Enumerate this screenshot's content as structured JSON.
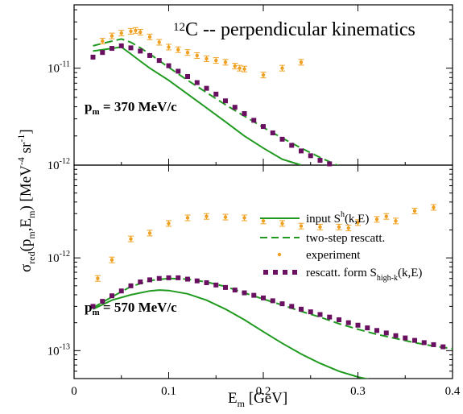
{
  "figure": {
    "title_sup": "12",
    "title_main": "C -- perpendicular kinematics",
    "ylabel": "σred(pm,Em) [MeV-4 sr-1]",
    "xlabel": "Em [GeV]",
    "colors": {
      "green": "#1f9a1f",
      "orange": "#f0a020",
      "purple": "#6a1060"
    }
  },
  "chart_data": [
    {
      "type": "line",
      "panel": "top",
      "annotation": "pm = 370 MeV/c",
      "xlim": [
        0,
        0.4
      ],
      "ylim": [
        1e-12,
        4.5e-11
      ],
      "yscale": "log",
      "y_tick_labels": [
        "10-12",
        "10-11"
      ],
      "grid": false,
      "series": [
        {
          "name": "input Sh(k,E)",
          "style": "solid",
          "x": [
            0.02,
            0.03,
            0.04,
            0.05,
            0.06,
            0.07,
            0.08,
            0.1,
            0.12,
            0.14,
            0.16,
            0.18,
            0.2,
            0.22,
            0.24
          ],
          "y": [
            1.5e-11,
            1.55e-11,
            1.6e-11,
            1.65e-11,
            1.4e-11,
            1.18e-11,
            1e-11,
            7.5e-12,
            5.4e-12,
            3.9e-12,
            2.8e-12,
            2e-12,
            1.5e-12,
            1.15e-12,
            1e-12
          ]
        },
        {
          "name": "two-step rescatt.",
          "style": "dashed",
          "x": [
            0.02,
            0.03,
            0.04,
            0.05,
            0.06,
            0.07,
            0.08,
            0.1,
            0.12,
            0.14,
            0.16,
            0.18,
            0.2,
            0.22,
            0.24,
            0.26,
            0.28
          ],
          "y": [
            1.7e-11,
            1.8e-11,
            1.9e-11,
            2e-11,
            1.85e-11,
            1.62e-11,
            1.4e-11,
            1.02e-11,
            7.5e-12,
            5.6e-12,
            4.2e-12,
            3.2e-12,
            2.45e-12,
            1.9e-12,
            1.5e-12,
            1.2e-12,
            9.8e-13
          ]
        },
        {
          "name": "rescatt. form Shigh-k(k,E)",
          "style": "squares",
          "x": [
            0.02,
            0.03,
            0.04,
            0.05,
            0.06,
            0.07,
            0.08,
            0.09,
            0.1,
            0.11,
            0.12,
            0.13,
            0.14,
            0.15,
            0.16,
            0.17,
            0.18,
            0.19,
            0.2,
            0.21,
            0.22,
            0.23,
            0.24,
            0.25,
            0.26,
            0.27,
            0.28
          ],
          "y": [
            1.3e-11,
            1.45e-11,
            1.6e-11,
            1.7e-11,
            1.62e-11,
            1.5e-11,
            1.35e-11,
            1.2e-11,
            1.06e-11,
            9.3e-12,
            8.2e-12,
            7.1e-12,
            6.2e-12,
            5.4e-12,
            4.6e-12,
            3.95e-12,
            3.4e-12,
            2.9e-12,
            2.5e-12,
            2.15e-12,
            1.85e-12,
            1.6e-12,
            1.4e-12,
            1.25e-12,
            1.12e-12,
            1.03e-12,
            9.6e-13
          ]
        },
        {
          "name": "experiment",
          "style": "errorbars",
          "x": [
            0.03,
            0.04,
            0.05,
            0.06,
            0.065,
            0.07,
            0.08,
            0.09,
            0.1,
            0.11,
            0.12,
            0.13,
            0.14,
            0.15,
            0.16,
            0.17,
            0.175,
            0.18,
            0.2,
            0.22,
            0.24
          ],
          "y": [
            1.9e-11,
            2.15e-11,
            2.3e-11,
            2.4e-11,
            2.45e-11,
            2.35e-11,
            2.1e-11,
            1.85e-11,
            1.65e-11,
            1.55e-11,
            1.45e-11,
            1.35e-11,
            1.25e-11,
            1.2e-11,
            1.15e-11,
            1.05e-11,
            1e-11,
            9.8e-12,
            8.5e-12,
            1e-11,
            1.15e-11
          ]
        }
      ]
    },
    {
      "type": "line",
      "panel": "bottom",
      "annotation": "pm = 570 MeV/c",
      "xlim": [
        0,
        0.4
      ],
      "ylim": [
        5e-14,
        1e-11
      ],
      "yscale": "log",
      "y_tick_labels": [
        "10-13",
        "10-12"
      ],
      "grid": false,
      "series": [
        {
          "name": "input Sh(k,E)",
          "style": "solid",
          "x": [
            0.02,
            0.04,
            0.06,
            0.08,
            0.09,
            0.1,
            0.12,
            0.14,
            0.16,
            0.18,
            0.2,
            0.22,
            0.24,
            0.26,
            0.28,
            0.3,
            0.32,
            0.34
          ],
          "y": [
            2.8e-13,
            3.5e-13,
            4e-13,
            4.4e-13,
            4.5e-13,
            4.45e-13,
            4.1e-13,
            3.5e-13,
            2.8e-13,
            2.15e-13,
            1.6e-13,
            1.2e-13,
            9.2e-14,
            7.3e-14,
            6e-14,
            5.2e-14,
            4.7e-14,
            4.4e-14
          ]
        },
        {
          "name": "two-step rescatt.",
          "style": "dashed",
          "x": [
            0.02,
            0.04,
            0.06,
            0.08,
            0.1,
            0.12,
            0.14,
            0.16,
            0.18,
            0.2,
            0.22,
            0.24,
            0.26,
            0.28,
            0.3,
            0.32,
            0.34,
            0.36,
            0.38,
            0.4
          ],
          "y": [
            2.9e-13,
            3.8e-13,
            4.9e-13,
            5.7e-13,
            6e-13,
            5.9e-13,
            5.5e-13,
            4.9e-13,
            4.2e-13,
            3.6e-13,
            3.1e-13,
            2.65e-13,
            2.3e-13,
            1.95e-13,
            1.7e-13,
            1.5e-13,
            1.35e-13,
            1.22e-13,
            1.12e-13,
            1.05e-13
          ]
        },
        {
          "name": "rescatt. form Shigh-k(k,E)",
          "style": "squares",
          "x": [
            0.02,
            0.03,
            0.04,
            0.05,
            0.06,
            0.07,
            0.08,
            0.09,
            0.1,
            0.11,
            0.12,
            0.13,
            0.14,
            0.15,
            0.16,
            0.17,
            0.18,
            0.19,
            0.2,
            0.21,
            0.22,
            0.23,
            0.24,
            0.25,
            0.26,
            0.27,
            0.28,
            0.29,
            0.3,
            0.31,
            0.32,
            0.33,
            0.34,
            0.35,
            0.36,
            0.37,
            0.38,
            0.39
          ],
          "y": [
            3e-13,
            3.4e-13,
            3.9e-13,
            4.4e-13,
            5e-13,
            5.5e-13,
            5.8e-13,
            6e-13,
            6.1e-13,
            6.1e-13,
            5.9e-13,
            5.65e-13,
            5.4e-13,
            5.1e-13,
            4.8e-13,
            4.5e-13,
            4.2e-13,
            3.95e-13,
            3.7e-13,
            3.45e-13,
            3.2e-13,
            3e-13,
            2.8e-13,
            2.62e-13,
            2.45e-13,
            2.3e-13,
            2.15e-13,
            2e-13,
            1.88e-13,
            1.76e-13,
            1.65e-13,
            1.55e-13,
            1.45e-13,
            1.37e-13,
            1.29e-13,
            1.22e-13,
            1.16e-13,
            1.1e-13
          ]
        },
        {
          "name": "experiment",
          "style": "errorbars",
          "x": [
            0.025,
            0.04,
            0.06,
            0.08,
            0.1,
            0.12,
            0.14,
            0.16,
            0.18,
            0.2,
            0.22,
            0.24,
            0.26,
            0.28,
            0.29,
            0.3,
            0.32,
            0.33,
            0.34,
            0.36,
            0.38
          ],
          "y": [
            6e-13,
            9.5e-13,
            1.6e-12,
            1.85e-12,
            2.35e-12,
            2.7e-12,
            2.8e-12,
            2.75e-12,
            2.7e-12,
            2.5e-12,
            2.35e-12,
            2.2e-12,
            2.15e-12,
            2.15e-12,
            2.1e-12,
            2.4e-12,
            2.6e-12,
            2.8e-12,
            2.5e-12,
            3.2e-12,
            3.5e-12
          ]
        }
      ]
    }
  ],
  "x_tick_labels": [
    "0",
    "0.1",
    "0.2",
    "0.3",
    "0.4"
  ]
}
